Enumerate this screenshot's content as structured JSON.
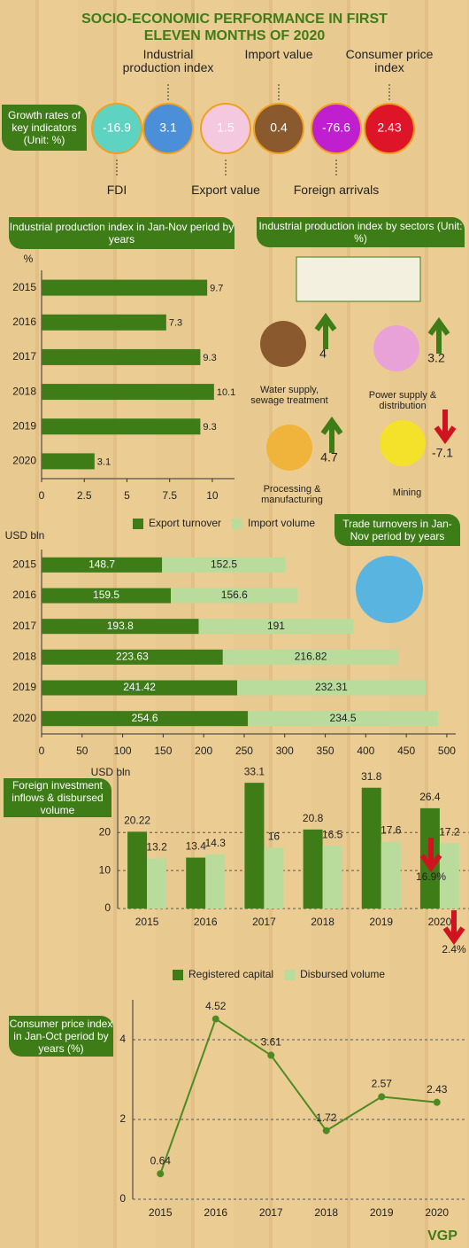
{
  "title": "SOCIO-ECONOMIC PERFORMANCE IN FIRST ELEVEN MONTHS OF 2020",
  "indicators": {
    "heading": "Growth rates of key indicators (Unit: %)",
    "items": [
      {
        "label": "FDI",
        "value": -16.9,
        "color": "#5fd3c2"
      },
      {
        "label": "Industrial production index",
        "value": 3.1,
        "color": "#4a8fd8"
      },
      {
        "label": "Export value",
        "value": 1.5,
        "color": "#f4c8df"
      },
      {
        "label": "Import value",
        "value": 0.4,
        "color": "#8a5a2e"
      },
      {
        "label": "Foreign arrivals",
        "value": -76.6,
        "color": "#c01fd0"
      },
      {
        "label": "Consumer price index",
        "value": 2.43,
        "color": "#de1429"
      }
    ]
  },
  "sectors": {
    "heading": "Industrial production index by sectors (Unit: %)",
    "items": [
      {
        "label": "Water supply, sewage treatment",
        "value": 4
      },
      {
        "label": "Power supply & distribution",
        "value": 3.2
      },
      {
        "label": "Processing & manufacturing",
        "value": 4.7
      },
      {
        "label": "Mining",
        "value": -7.1
      }
    ]
  },
  "chart_data": [
    {
      "type": "hbar",
      "title": "Industrial production index in Jan-Nov period by years",
      "y_label": "%",
      "categories": [
        "2015",
        "2016",
        "2017",
        "2018",
        "2019",
        "2020"
      ],
      "series": [
        {
          "name": "Industrial production index",
          "color": "#3e7c17",
          "values": [
            9.7,
            7.3,
            9.3,
            10.1,
            9.3,
            3.1
          ]
        }
      ],
      "xlim": [
        0,
        11.3
      ],
      "xticks": [
        0,
        2.5,
        5,
        7.5,
        10
      ]
    },
    {
      "type": "hbar",
      "title": "Trade turnovers in Jan-Nov period by years",
      "y_label": "USD bln",
      "stacked": true,
      "categories": [
        "2015",
        "2016",
        "2017",
        "2018",
        "2019",
        "2020"
      ],
      "series": [
        {
          "name": "Export turnover",
          "color": "#3e7c17",
          "values": [
            148.7,
            159.5,
            193.8,
            223.63,
            241.42,
            254.6
          ]
        },
        {
          "name": "Import volume",
          "color": "#b9dc9c",
          "values": [
            152.5,
            156.6,
            191,
            216.82,
            232.31,
            234.5
          ]
        }
      ],
      "xlim": [
        0,
        511
      ],
      "xticks": [
        0,
        50,
        100,
        150,
        200,
        250,
        300,
        350,
        400,
        450,
        500
      ]
    },
    {
      "type": "vbar",
      "title": "Foreign investment inflows & disbursed volume",
      "y_label": "USD bln",
      "categories": [
        "2015",
        "2016",
        "2017",
        "2018",
        "2019",
        "2020"
      ],
      "series": [
        {
          "name": "Registered capital",
          "color": "#3e7c17",
          "values": [
            20.22,
            13.4,
            33.1,
            20.8,
            31.8,
            26.4
          ]
        },
        {
          "name": "Disbursed volume",
          "color": "#b9dc9c",
          "values": [
            13.2,
            14.3,
            16,
            16.5,
            17.6,
            17.2
          ]
        }
      ],
      "ylim": [
        0,
        35
      ],
      "yticks": [
        0,
        10,
        20
      ],
      "annotations": [
        "16.9%",
        "2.4%"
      ]
    },
    {
      "type": "line",
      "title": "Consumer price index in Jan-Oct period by years (%)",
      "categories": [
        "2015",
        "2016",
        "2017",
        "2018",
        "2019",
        "2020"
      ],
      "series": [
        {
          "name": "Consumer price index",
          "color": "#4d8a22",
          "values": [
            0.64,
            4.52,
            3.61,
            1.72,
            2.57,
            2.43
          ]
        }
      ],
      "ylim": [
        0,
        5
      ],
      "yticks": [
        0,
        2,
        4
      ]
    }
  ],
  "logo": "VGP"
}
